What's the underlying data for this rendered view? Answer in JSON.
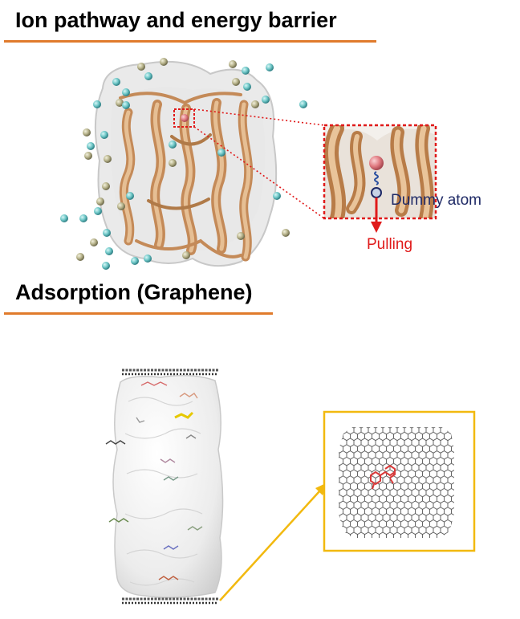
{
  "sections": {
    "ion": {
      "title": "Ion pathway and energy barrier"
    },
    "adsorption": {
      "title": "Adsorption (Graphene)"
    }
  },
  "annotations": {
    "dummy_atom": "Dummy atom",
    "pulling": "Pulling"
  },
  "colors": {
    "rule": "#e07b2c",
    "protein": "#d9a878",
    "ion_cyan": "#6fc8c8",
    "ion_tan": "#b8b48c",
    "highlight_ion": "#e07a80",
    "zoom_box": "#e01a1a",
    "pulling": "#e01a1a",
    "dummy_label": "#1f2a66",
    "graphene_box": "#f2b90f"
  }
}
